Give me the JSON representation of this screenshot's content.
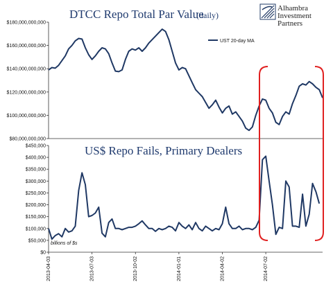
{
  "logo": {
    "lines": [
      "Alhambra",
      "Investment",
      "Partners"
    ]
  },
  "chart_data": [
    {
      "type": "line",
      "title": "DTCC Repo Total Par Value",
      "subtitle": "(daily)",
      "ylim": [
        80000000000,
        180000000000
      ],
      "y_ticks": [
        {
          "value": 180000000000,
          "label": "$180,000,000,000"
        },
        {
          "value": 160000000000,
          "label": "$160,000,000,000"
        },
        {
          "value": 140000000000,
          "label": "$140,000,000,000"
        },
        {
          "value": 120000000000,
          "label": "$120,000,000,000"
        },
        {
          "value": 100000000000,
          "label": "$100,000,000,000"
        },
        {
          "value": 80000000000,
          "label": "$80,000,000,000"
        }
      ],
      "legend": "top-right",
      "series": [
        {
          "name": "UST 20-day MA",
          "color": "#1f3864",
          "points": [
            [
              "2013-04-03",
              139000000000
            ],
            [
              "2013-04-10",
              141000000000
            ],
            [
              "2013-04-17",
              140500000000
            ],
            [
              "2013-04-24",
              143000000000
            ],
            [
              "2013-05-01",
              147000000000
            ],
            [
              "2013-05-08",
              151000000000
            ],
            [
              "2013-05-15",
              157000000000
            ],
            [
              "2013-05-22",
              160000000000
            ],
            [
              "2013-05-29",
              164000000000
            ],
            [
              "2013-06-05",
              166000000000
            ],
            [
              "2013-06-12",
              165500000000
            ],
            [
              "2013-06-19",
              158000000000
            ],
            [
              "2013-06-26",
              152000000000
            ],
            [
              "2013-07-03",
              148000000000
            ],
            [
              "2013-07-10",
              151000000000
            ],
            [
              "2013-07-17",
              155000000000
            ],
            [
              "2013-07-24",
              158000000000
            ],
            [
              "2013-07-31",
              157000000000
            ],
            [
              "2013-08-07",
              153000000000
            ],
            [
              "2013-08-14",
              145000000000
            ],
            [
              "2013-08-21",
              138000000000
            ],
            [
              "2013-08-28",
              137500000000
            ],
            [
              "2013-09-04",
              139000000000
            ],
            [
              "2013-09-11",
              148000000000
            ],
            [
              "2013-09-18",
              155000000000
            ],
            [
              "2013-09-25",
              157000000000
            ],
            [
              "2013-10-02",
              156000000000
            ],
            [
              "2013-10-09",
              158000000000
            ],
            [
              "2013-10-16",
              155000000000
            ],
            [
              "2013-10-23",
              158000000000
            ],
            [
              "2013-10-30",
              162000000000
            ],
            [
              "2013-11-06",
              165000000000
            ],
            [
              "2013-11-13",
              168000000000
            ],
            [
              "2013-11-20",
              171000000000
            ],
            [
              "2013-11-27",
              174000000000
            ],
            [
              "2013-12-04",
              172000000000
            ],
            [
              "2013-12-11",
              165000000000
            ],
            [
              "2013-12-18",
              155000000000
            ],
            [
              "2013-12-25",
              145000000000
            ],
            [
              "2014-01-01",
              139000000000
            ],
            [
              "2014-01-08",
              141000000000
            ],
            [
              "2014-01-15",
              140000000000
            ],
            [
              "2014-01-22",
              134000000000
            ],
            [
              "2014-01-29",
              128000000000
            ],
            [
              "2014-02-05",
              122000000000
            ],
            [
              "2014-02-12",
              119000000000
            ],
            [
              "2014-02-19",
              116000000000
            ],
            [
              "2014-02-26",
              111000000000
            ],
            [
              "2014-03-05",
              106000000000
            ],
            [
              "2014-03-12",
              109000000000
            ],
            [
              "2014-03-19",
              113000000000
            ],
            [
              "2014-03-26",
              107000000000
            ],
            [
              "2014-04-02",
              102000000000
            ],
            [
              "2014-04-09",
              106000000000
            ],
            [
              "2014-04-16",
              108000000000
            ],
            [
              "2014-04-23",
              101000000000
            ],
            [
              "2014-04-30",
              103000000000
            ],
            [
              "2014-05-07",
              99000000000
            ],
            [
              "2014-05-14",
              95000000000
            ],
            [
              "2014-05-21",
              89000000000
            ],
            [
              "2014-05-28",
              87000000000
            ],
            [
              "2014-06-04",
              90000000000
            ],
            [
              "2014-06-11",
              100000000000
            ],
            [
              "2014-06-18",
              108000000000
            ],
            [
              "2014-06-25",
              114000000000
            ],
            [
              "2014-07-02",
              113000000000
            ],
            [
              "2014-07-09",
              106000000000
            ],
            [
              "2014-07-16",
              102000000000
            ],
            [
              "2014-07-23",
              94000000000
            ],
            [
              "2014-07-30",
              92000000000
            ],
            [
              "2014-08-06",
              99000000000
            ],
            [
              "2014-08-13",
              103000000000
            ],
            [
              "2014-08-20",
              101000000000
            ],
            [
              "2014-08-27",
              110000000000
            ],
            [
              "2014-09-03",
              117000000000
            ],
            [
              "2014-09-10",
              125000000000
            ],
            [
              "2014-09-17",
              127000000000
            ],
            [
              "2014-09-24",
              126000000000
            ],
            [
              "2014-10-01",
              129000000000
            ],
            [
              "2014-10-08",
              127000000000
            ],
            [
              "2014-10-15",
              124000000000
            ],
            [
              "2014-10-22",
              122000000000
            ],
            [
              "2014-10-29",
              115000000000
            ]
          ]
        }
      ]
    },
    {
      "type": "line",
      "title": "US$ Repo Fails, Primary Dealers",
      "units_note": "billions of $s",
      "ylim": [
        0,
        450
      ],
      "y_ticks": [
        {
          "value": 450,
          "label": "$450,000"
        },
        {
          "value": 400,
          "label": "$400,000"
        },
        {
          "value": 350,
          "label": "$350,000"
        },
        {
          "value": 300,
          "label": "$300,000"
        },
        {
          "value": 250,
          "label": "$250,000"
        },
        {
          "value": 200,
          "label": "$200,000"
        },
        {
          "value": 150,
          "label": "$150,000"
        },
        {
          "value": 100,
          "label": "$100,000"
        },
        {
          "value": 50,
          "label": "$50,000"
        },
        {
          "value": 0,
          "label": "$0"
        }
      ],
      "x_ticks": [
        "2013-04-03",
        "2013-07-03",
        "2013-10-02",
        "2014-01-01",
        "2014-04-02",
        "2014-07-02"
      ],
      "series": [
        {
          "color": "#1f3864",
          "points": [
            [
              "2013-04-03",
              100
            ],
            [
              "2013-04-10",
              55
            ],
            [
              "2013-04-17",
              70
            ],
            [
              "2013-04-24",
              78
            ],
            [
              "2013-05-01",
              65
            ],
            [
              "2013-05-08",
              100
            ],
            [
              "2013-05-15",
              85
            ],
            [
              "2013-05-22",
              90
            ],
            [
              "2013-05-29",
              110
            ],
            [
              "2013-06-05",
              260
            ],
            [
              "2013-06-12",
              335
            ],
            [
              "2013-06-19",
              285
            ],
            [
              "2013-06-26",
              150
            ],
            [
              "2013-07-03",
              155
            ],
            [
              "2013-07-10",
              165
            ],
            [
              "2013-07-17",
              190
            ],
            [
              "2013-07-24",
              80
            ],
            [
              "2013-07-31",
              65
            ],
            [
              "2013-08-07",
              125
            ],
            [
              "2013-08-14",
              140
            ],
            [
              "2013-08-21",
              100
            ],
            [
              "2013-08-28",
              100
            ],
            [
              "2013-09-04",
              95
            ],
            [
              "2013-09-11",
              100
            ],
            [
              "2013-09-18",
              105
            ],
            [
              "2013-09-25",
              105
            ],
            [
              "2013-10-02",
              110
            ],
            [
              "2013-10-09",
              120
            ],
            [
              "2013-10-16",
              132
            ],
            [
              "2013-10-23",
              115
            ],
            [
              "2013-10-30",
              100
            ],
            [
              "2013-11-06",
              100
            ],
            [
              "2013-11-13",
              88
            ],
            [
              "2013-11-20",
              100
            ],
            [
              "2013-11-27",
              95
            ],
            [
              "2013-12-04",
              100
            ],
            [
              "2013-12-11",
              110
            ],
            [
              "2013-12-18",
              105
            ],
            [
              "2013-12-25",
              90
            ],
            [
              "2014-01-01",
              125
            ],
            [
              "2014-01-08",
              110
            ],
            [
              "2014-01-15",
              100
            ],
            [
              "2014-01-22",
              115
            ],
            [
              "2014-01-29",
              95
            ],
            [
              "2014-02-05",
              125
            ],
            [
              "2014-02-12",
              100
            ],
            [
              "2014-02-19",
              90
            ],
            [
              "2014-02-26",
              110
            ],
            [
              "2014-03-05",
              100
            ],
            [
              "2014-03-12",
              90
            ],
            [
              "2014-03-19",
              100
            ],
            [
              "2014-03-26",
              95
            ],
            [
              "2014-04-02",
              120
            ],
            [
              "2014-04-09",
              190
            ],
            [
              "2014-04-16",
              120
            ],
            [
              "2014-04-23",
              100
            ],
            [
              "2014-04-30",
              100
            ],
            [
              "2014-05-07",
              110
            ],
            [
              "2014-05-14",
              95
            ],
            [
              "2014-05-21",
              100
            ],
            [
              "2014-05-28",
              100
            ],
            [
              "2014-06-04",
              95
            ],
            [
              "2014-06-11",
              105
            ],
            [
              "2014-06-18",
              135
            ],
            [
              "2014-06-25",
              390
            ],
            [
              "2014-07-02",
              405
            ],
            [
              "2014-07-09",
              300
            ],
            [
              "2014-07-16",
              200
            ],
            [
              "2014-07-23",
              75
            ],
            [
              "2014-07-30",
              105
            ],
            [
              "2014-08-06",
              100
            ],
            [
              "2014-08-13",
              300
            ],
            [
              "2014-08-20",
              275
            ],
            [
              "2014-08-27",
              110
            ],
            [
              "2014-09-03",
              110
            ],
            [
              "2014-09-10",
              105
            ],
            [
              "2014-09-17",
              245
            ],
            [
              "2014-09-24",
              110
            ],
            [
              "2014-10-01",
              160
            ],
            [
              "2014-10-08",
              290
            ],
            [
              "2014-10-15",
              255
            ],
            [
              "2014-10-22",
              205
            ]
          ]
        }
      ]
    }
  ],
  "annotation": {
    "shape": "bracket-highlight",
    "color": "#e02020"
  }
}
